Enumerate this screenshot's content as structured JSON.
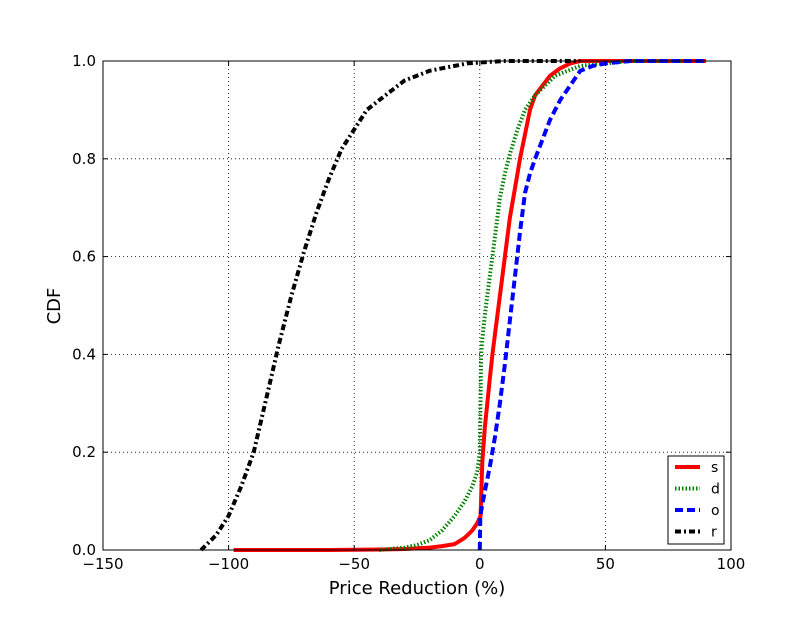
{
  "chart_data": {
    "type": "line",
    "xlabel": "Price Reduction (%)",
    "ylabel": "CDF",
    "xlim": [
      -150,
      100
    ],
    "ylim": [
      0.0,
      1.0
    ],
    "xticks": [
      -150,
      -100,
      -50,
      0,
      50,
      100
    ],
    "xtick_labels": [
      "−150",
      "−100",
      "−50",
      "0",
      "50",
      "100"
    ],
    "yticks": [
      0.0,
      0.2,
      0.4,
      0.6,
      0.8,
      1.0
    ],
    "ytick_labels": [
      "0.0",
      "0.2",
      "0.4",
      "0.6",
      "0.8",
      "1.0"
    ],
    "grid": true,
    "legend_position": "bottom-right",
    "series": [
      {
        "name": "s",
        "color": "#ff0000",
        "style": "solid",
        "x": [
          -98,
          -60,
          -40,
          -30,
          -20,
          -15,
          -10,
          -6,
          -3,
          -1,
          0.3,
          1,
          2,
          3,
          4,
          5,
          6,
          7,
          8,
          9,
          10,
          11,
          12,
          14,
          16,
          18,
          20,
          22,
          25,
          28,
          32,
          36,
          40,
          45,
          50,
          60,
          70,
          90
        ],
        "y": [
          0.0,
          0.0,
          0.001,
          0.002,
          0.005,
          0.008,
          0.012,
          0.025,
          0.04,
          0.055,
          0.07,
          0.18,
          0.25,
          0.3,
          0.35,
          0.4,
          0.44,
          0.48,
          0.52,
          0.56,
          0.6,
          0.64,
          0.68,
          0.74,
          0.8,
          0.85,
          0.9,
          0.93,
          0.95,
          0.97,
          0.985,
          0.995,
          1.0,
          1.0,
          1.0,
          1.0,
          1.0,
          1.0
        ]
      },
      {
        "name": "d",
        "color": "#008000",
        "style": "dotted",
        "x": [
          -40,
          -30,
          -25,
          -20,
          -15,
          -10,
          -6,
          -3,
          -1,
          0,
          0.5,
          1,
          2,
          3,
          4,
          5,
          6,
          7,
          8,
          10,
          12,
          15,
          18,
          22,
          26,
          30,
          35,
          40,
          50,
          60,
          80
        ],
        "y": [
          0.0,
          0.005,
          0.01,
          0.02,
          0.04,
          0.07,
          0.1,
          0.13,
          0.16,
          0.2,
          0.4,
          0.43,
          0.48,
          0.52,
          0.56,
          0.6,
          0.64,
          0.68,
          0.72,
          0.77,
          0.81,
          0.86,
          0.9,
          0.93,
          0.95,
          0.97,
          0.98,
          0.99,
          0.995,
          1.0,
          1.0
        ]
      },
      {
        "name": "o",
        "color": "#0000ff",
        "style": "dashed",
        "x": [
          0,
          0.2,
          2,
          4,
          6,
          8,
          10,
          12,
          14,
          16,
          18,
          20,
          22,
          25,
          28,
          32,
          36,
          40,
          45,
          50,
          60,
          70,
          80,
          90
        ],
        "y": [
          0.0,
          0.07,
          0.12,
          0.17,
          0.23,
          0.3,
          0.38,
          0.47,
          0.56,
          0.65,
          0.73,
          0.77,
          0.8,
          0.84,
          0.88,
          0.92,
          0.95,
          0.98,
          0.99,
          0.995,
          1.0,
          1.0,
          1.0,
          1.0
        ]
      },
      {
        "name": "r",
        "color": "#000000",
        "style": "dashdot",
        "x": [
          -111,
          -105,
          -100,
          -95,
          -90,
          -85,
          -80,
          -75,
          -70,
          -65,
          -60,
          -55,
          -50,
          -45,
          -40,
          -35,
          -30,
          -25,
          -20,
          -15,
          -10,
          -5,
          0,
          10,
          20,
          30,
          40
        ],
        "y": [
          0.0,
          0.03,
          0.07,
          0.13,
          0.2,
          0.31,
          0.42,
          0.52,
          0.61,
          0.69,
          0.76,
          0.82,
          0.86,
          0.9,
          0.92,
          0.94,
          0.96,
          0.97,
          0.98,
          0.985,
          0.99,
          0.995,
          0.997,
          1.0,
          1.0,
          1.0,
          1.0
        ]
      }
    ]
  }
}
